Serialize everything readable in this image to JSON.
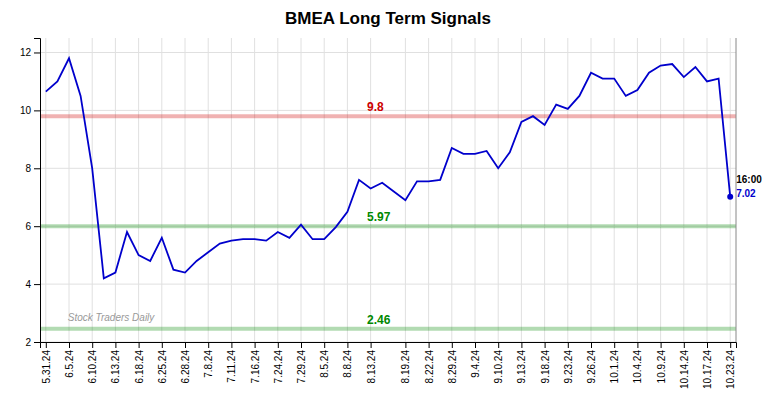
{
  "chart_data": {
    "type": "line",
    "title": "BMEA Long Term Signals",
    "color": "#0000cc",
    "grid": true,
    "ylim": [
      2.0,
      12.5
    ],
    "yticks": [
      2,
      4,
      6,
      8,
      10,
      12
    ],
    "categories": [
      "5.31.24",
      null,
      "6.5.24",
      null,
      "6.10.24",
      null,
      "6.13.24",
      null,
      "6.18.24",
      null,
      "6.25.24",
      null,
      "6.28.24",
      null,
      "7.8.24",
      null,
      "7.11.24",
      null,
      "7.16.24",
      null,
      "7.24.24",
      null,
      "7.29.24",
      null,
      "8.5.24",
      null,
      "8.8.24",
      null,
      "8.13.24",
      null,
      null,
      "8.19.24",
      null,
      "8.22.24",
      null,
      "8.29.24",
      null,
      "9.4.24",
      null,
      "9.10.24",
      null,
      "9.13.24",
      null,
      "9.18.24",
      null,
      "9.23.24",
      null,
      "9.26.24",
      null,
      "10.1.24",
      null,
      "10.4.24",
      null,
      "10.9.24",
      null,
      "10.14.24",
      null,
      "10.17.24",
      null,
      "10.23.24"
    ],
    "values": [
      10.65,
      11.0,
      11.8,
      10.5,
      8.0,
      4.2,
      4.4,
      5.8,
      5.0,
      4.8,
      5.6,
      4.5,
      4.4,
      4.8,
      5.1,
      5.4,
      5.5,
      5.55,
      5.55,
      5.5,
      5.8,
      5.6,
      6.05,
      5.55,
      5.55,
      5.97,
      6.5,
      7.6,
      7.3,
      7.5,
      7.2,
      6.9,
      7.55,
      7.55,
      7.6,
      8.7,
      8.5,
      8.5,
      8.6,
      8.0,
      8.55,
      9.6,
      9.8,
      9.5,
      10.2,
      10.05,
      10.5,
      11.3,
      11.1,
      11.1,
      10.5,
      10.7,
      11.3,
      11.55,
      11.6,
      11.15,
      11.5,
      11.0,
      11.1,
      7.02
    ],
    "reference_lines": [
      {
        "value": 9.8,
        "label": "9.8",
        "color": "#cc0000"
      },
      {
        "value": 6.0,
        "label": "5.97",
        "color": "#008800"
      },
      {
        "value": 2.46,
        "label": "2.46",
        "color": "#008800"
      }
    ],
    "annotations": [
      {
        "text": "16:00",
        "color": "#000000"
      },
      {
        "text": "7.02",
        "color": "#0000cc"
      }
    ],
    "watermark": "Stock Traders Daily"
  }
}
